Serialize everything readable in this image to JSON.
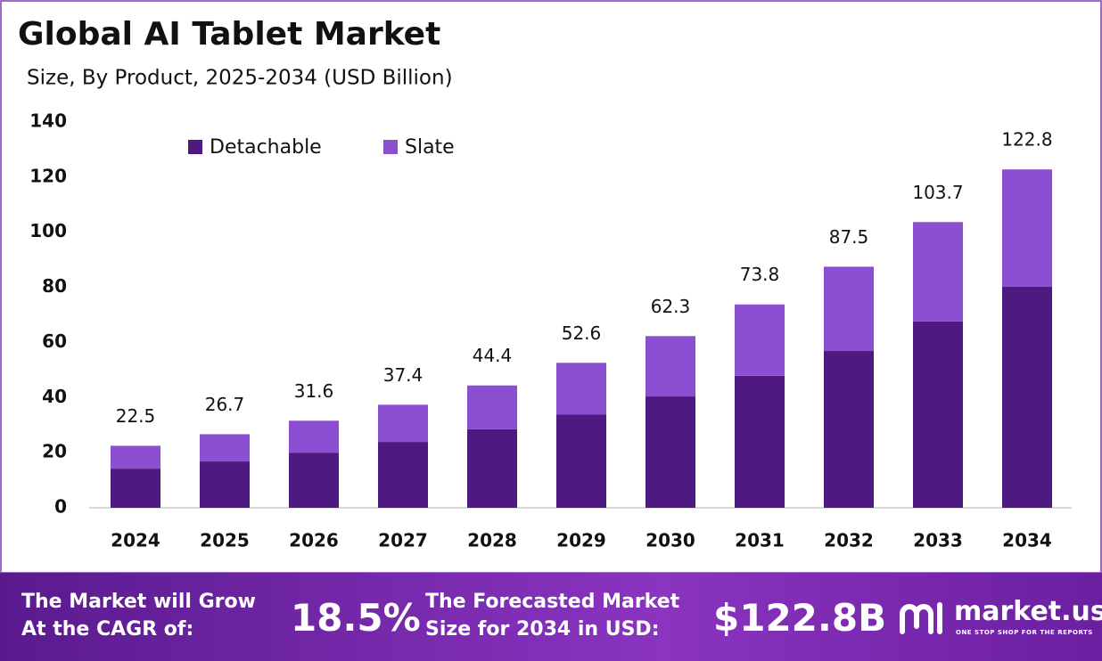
{
  "chart_data": {
    "type": "stacked_bar",
    "title": "Global AI Tablet Market",
    "subtitle": "Size, By Product, 2025-2034 (USD Billion)",
    "categories": [
      "2024",
      "2025",
      "2026",
      "2027",
      "2028",
      "2029",
      "2030",
      "2031",
      "2032",
      "2033",
      "2034"
    ],
    "series": [
      {
        "name": "Detachable",
        "color": "#4e1a82",
        "values": [
          14.2,
          16.8,
          20.0,
          23.9,
          28.5,
          33.9,
          40.4,
          47.9,
          56.9,
          67.6,
          80.2
        ]
      },
      {
        "name": "Slate",
        "color": "#8c4fd1",
        "values": [
          8.3,
          9.9,
          11.6,
          13.5,
          15.9,
          18.7,
          21.9,
          25.9,
          30.6,
          36.1,
          42.6
        ]
      }
    ],
    "totals": [
      22.5,
      26.7,
      31.6,
      37.4,
      44.4,
      52.6,
      62.3,
      73.8,
      87.5,
      103.7,
      122.8
    ],
    "ylim": [
      0,
      140
    ],
    "yticks": [
      0,
      20,
      40,
      60,
      80,
      100,
      120,
      140
    ],
    "grid": false,
    "legend": "top"
  },
  "footer": {
    "cagr_label": [
      "The Market will Grow",
      "At the CAGR of:"
    ],
    "cagr_value": "18.5%",
    "forecast_label": [
      "The Forecasted Market",
      "Size for 2034 in USD:"
    ],
    "forecast_value": "$122.8B",
    "brand": "market.us",
    "tagline": "ONE STOP SHOP FOR THE REPORTS"
  }
}
